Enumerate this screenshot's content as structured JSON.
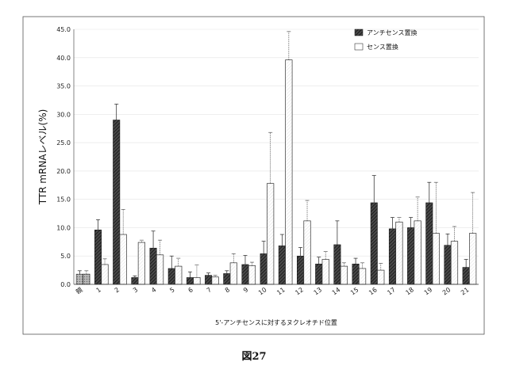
{
  "chart_data": {
    "type": "bar",
    "ylabel": "TTR mRNAレベル(%)",
    "xlabel": "5'-アンチセンスに対するヌクレオチド位置",
    "caption": "図27",
    "ylim": [
      0,
      45
    ],
    "yticks": [
      "0.0",
      "5.0",
      "10.0",
      "15.0",
      "20.0",
      "25.0",
      "30.0",
      "35.0",
      "40.0",
      "45.0"
    ],
    "categories": [
      "親",
      "1",
      "2",
      "3",
      "4",
      "5",
      "6",
      "7",
      "8",
      "9",
      "10",
      "11",
      "12",
      "13",
      "14",
      "15",
      "16",
      "17",
      "18",
      "19",
      "20",
      "21"
    ],
    "legend_position": "top-right",
    "series": [
      {
        "name": "アンチセンス置換",
        "pattern": "dark-hatch",
        "values": [
          1.8,
          9.6,
          29.0,
          1.2,
          6.4,
          2.8,
          1.2,
          1.6,
          1.9,
          3.5,
          5.4,
          6.8,
          5.0,
          3.6,
          7.0,
          3.6,
          14.4,
          9.8,
          10.0,
          14.4,
          6.9,
          3.0
        ],
        "errors": [
          0.6,
          1.8,
          2.8,
          0.3,
          3.0,
          2.2,
          1.0,
          0.4,
          0.5,
          1.6,
          2.2,
          2.0,
          1.5,
          1.2,
          4.2,
          1.0,
          4.8,
          2.0,
          1.8,
          3.6,
          2.0,
          1.4
        ]
      },
      {
        "name": "センス置換",
        "pattern": "light",
        "values": [
          1.8,
          3.5,
          8.8,
          7.4,
          5.2,
          3.2,
          1.2,
          1.3,
          3.8,
          3.3,
          17.8,
          39.6,
          11.2,
          4.4,
          3.2,
          2.8,
          2.5,
          11.0,
          11.2,
          9.0,
          7.6,
          9.0
        ],
        "errors": [
          0.6,
          1.0,
          4.4,
          0.4,
          2.6,
          1.4,
          2.2,
          0.3,
          1.6,
          0.6,
          9.0,
          5.0,
          3.6,
          1.4,
          0.6,
          1.0,
          1.2,
          0.8,
          4.2,
          9.0,
          2.6,
          7.2
        ]
      }
    ]
  }
}
